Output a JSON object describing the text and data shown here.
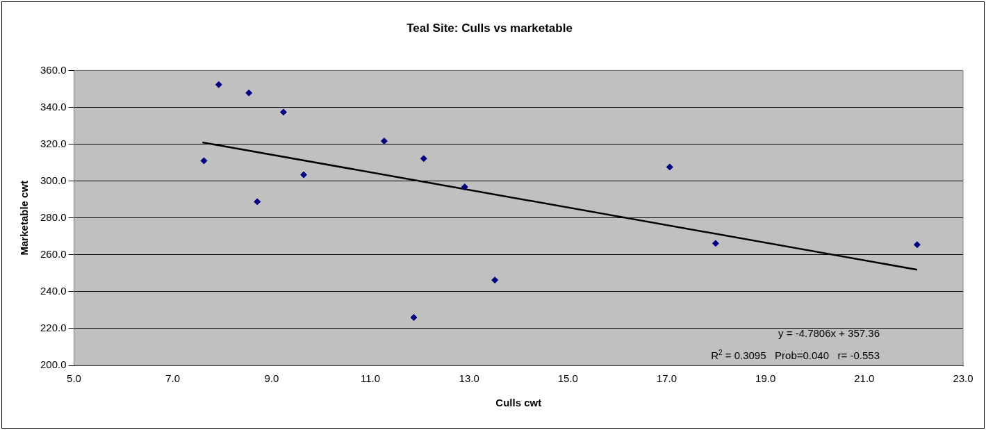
{
  "chart_data": {
    "type": "scatter",
    "title": "Teal Site: Culls vs marketable",
    "xlabel": "Culls cwt",
    "ylabel": "Marketable cwt",
    "xlim": [
      5,
      23
    ],
    "xticks": [
      {
        "value": 5,
        "label": "5.0"
      },
      {
        "value": 7,
        "label": "7.0"
      },
      {
        "value": 9,
        "label": "9.0"
      },
      {
        "value": 11,
        "label": "11.0"
      },
      {
        "value": 13,
        "label": "13.0"
      },
      {
        "value": 15,
        "label": "15.0"
      },
      {
        "value": 17,
        "label": "17.0"
      },
      {
        "value": 19,
        "label": "19.0"
      },
      {
        "value": 21,
        "label": "21.0"
      },
      {
        "value": 23,
        "label": "23.0"
      }
    ],
    "ylim": [
      200,
      360
    ],
    "yticks": [
      {
        "value": 200,
        "label": "200.0"
      },
      {
        "value": 220,
        "label": "220.0"
      },
      {
        "value": 240,
        "label": "240.0"
      },
      {
        "value": 260,
        "label": "260.0"
      },
      {
        "value": 280,
        "label": "280.0"
      },
      {
        "value": 300,
        "label": "300.0"
      },
      {
        "value": 320,
        "label": "320.0"
      },
      {
        "value": 340,
        "label": "340.0"
      },
      {
        "value": 360,
        "label": "360.0"
      }
    ],
    "grid": "y",
    "legend": false,
    "marker": "diamond",
    "series": [
      {
        "color": "#000080",
        "x": [
          7.63,
          7.93,
          8.54,
          9.24,
          9.65,
          8.71,
          11.28,
          12.08,
          12.91,
          11.88,
          13.52,
          17.06,
          17.99,
          22.07
        ],
        "values": [
          311.0,
          352.3,
          347.8,
          337.4,
          303.4,
          288.8,
          321.7,
          312.2,
          296.8,
          226.0,
          246.3,
          307.6,
          266.2,
          265.5
        ]
      },
      {
        "type": "line",
        "marker": "none",
        "color": "#000000",
        "line_style": "solid",
        "x": [
          7.6,
          22.07
        ],
        "values": [
          321.0,
          251.9
        ]
      }
    ],
    "annotations": [
      "y = -4.7806x + 357.36",
      "R$^{2}$ = 0.3095   Prob=0.040   r= -0.553"
    ]
  }
}
